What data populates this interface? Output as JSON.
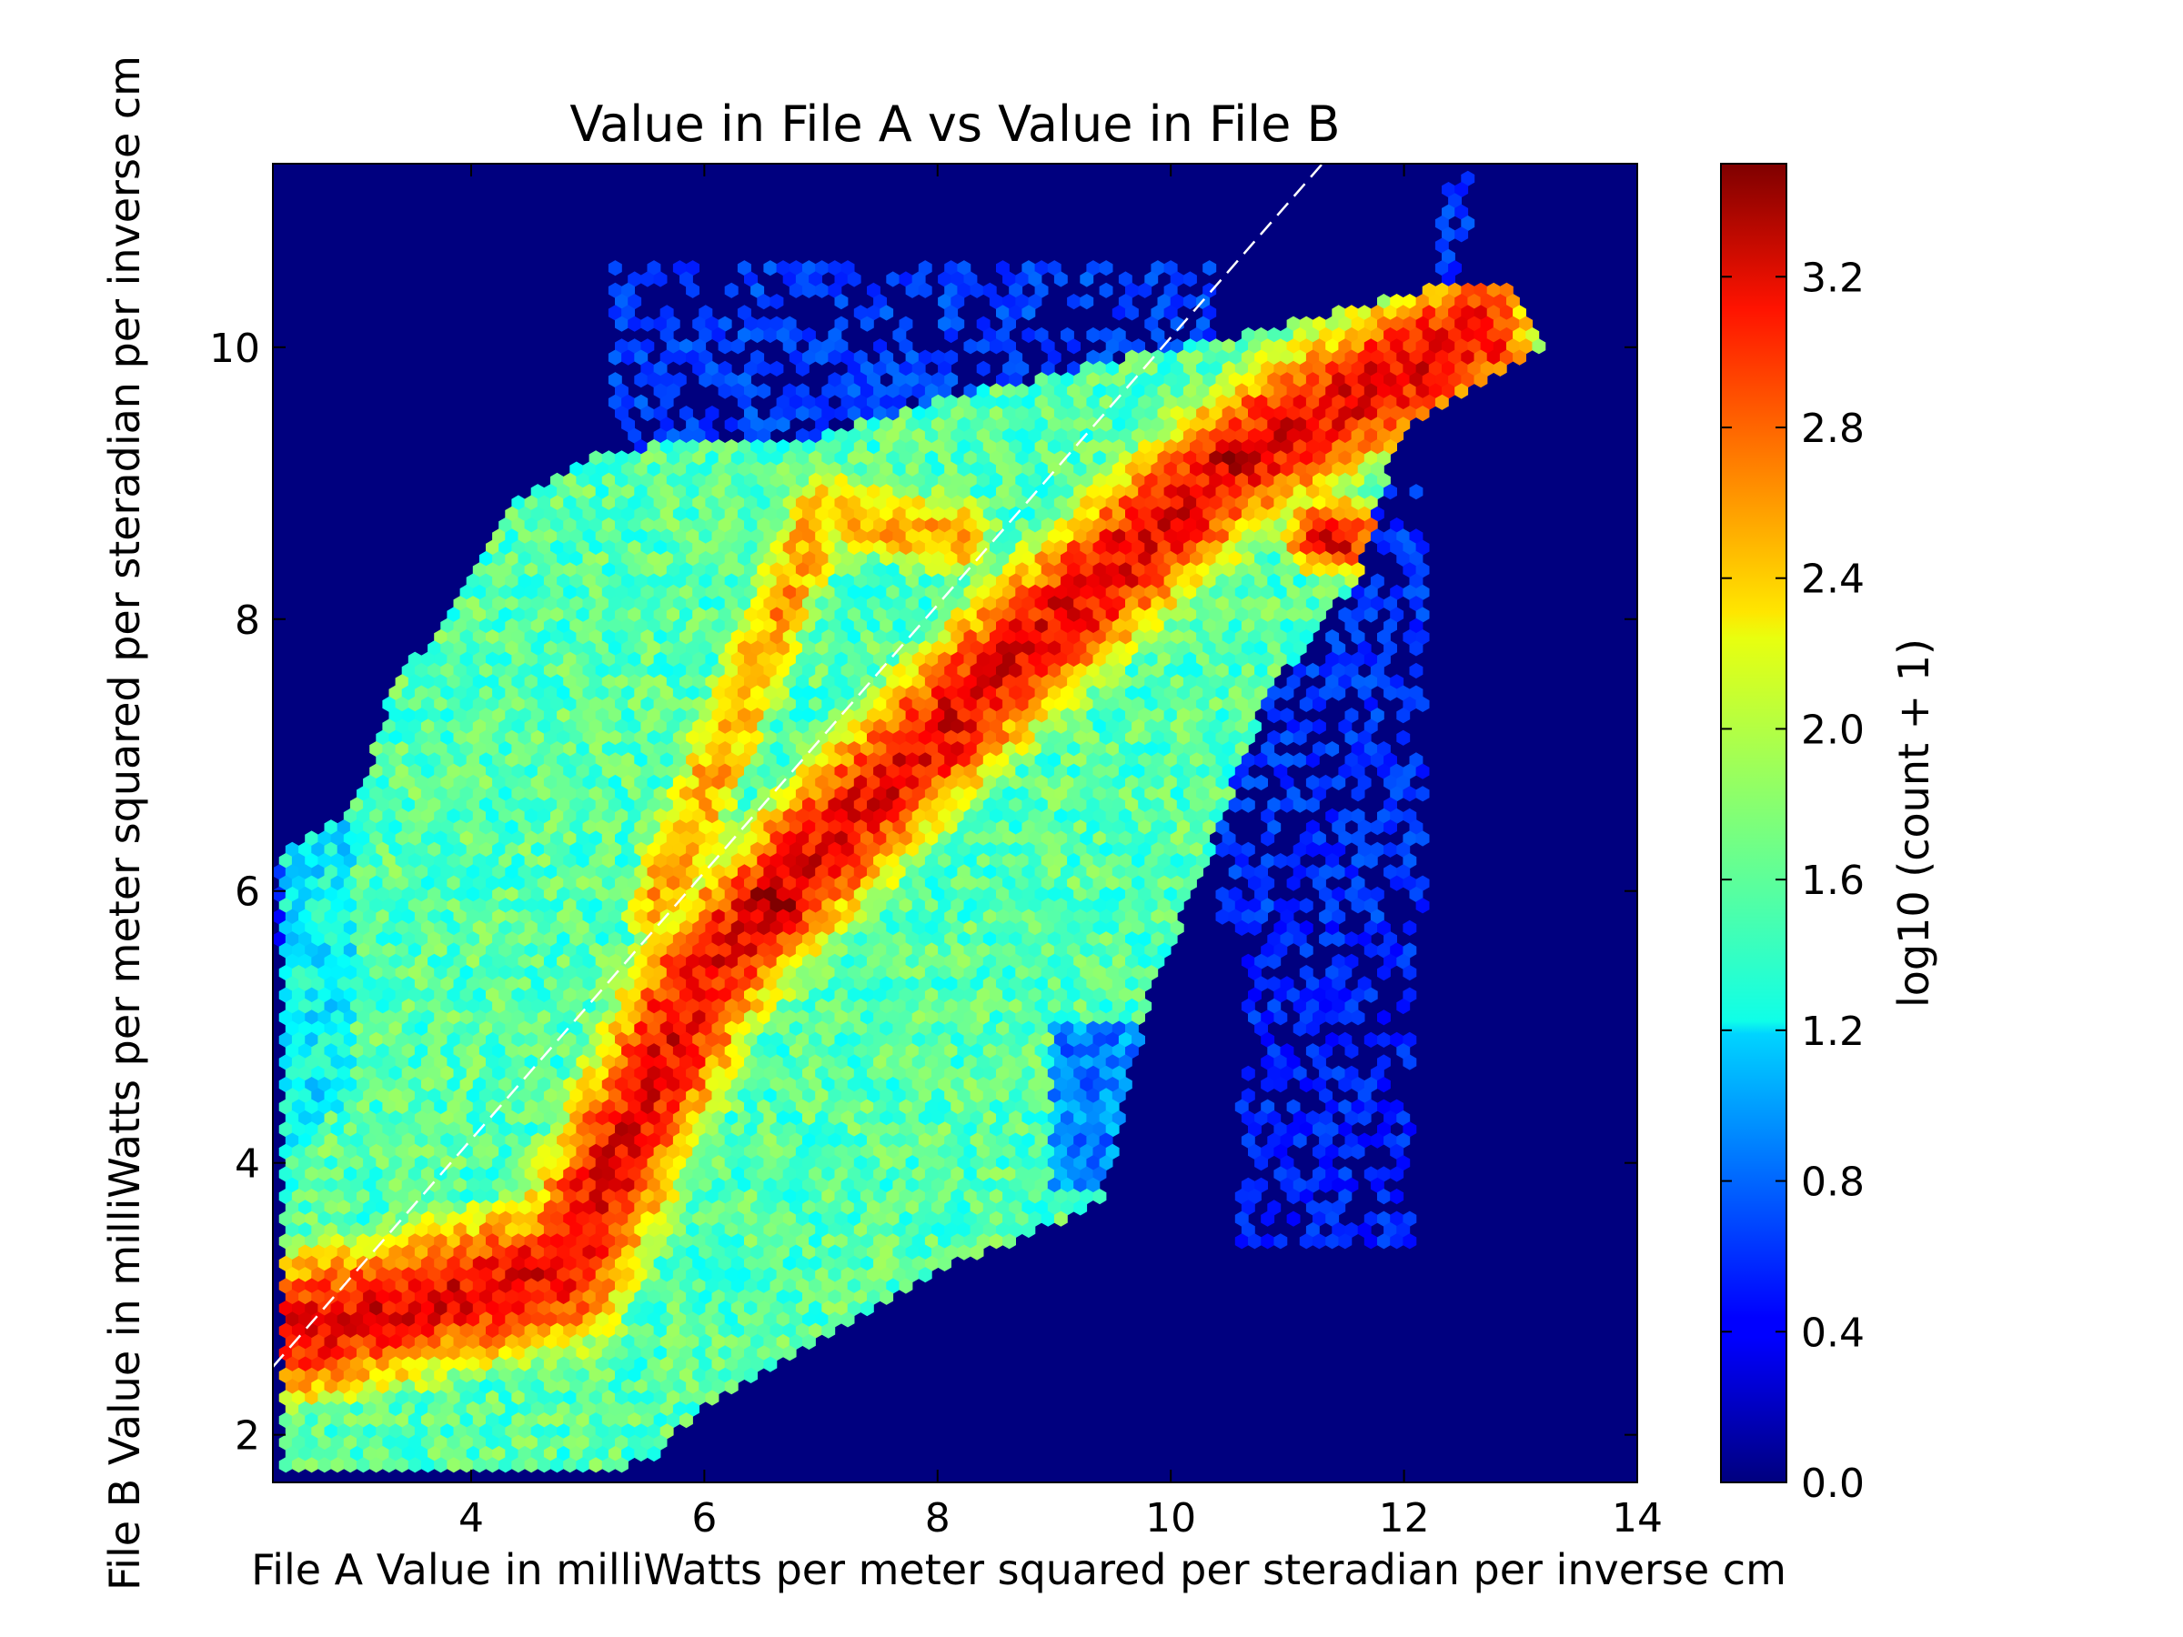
{
  "chart_data": {
    "type": "heatmap",
    "subtype": "hexbin",
    "title": "Value in File A vs Value in File B",
    "xlabel": "File A Value in milliWatts per meter squared per steradian per inverse cm",
    "ylabel": "File B Value in milliWatts per meter squared per steradian per inverse cm",
    "xlim": [
      2.3,
      14.0
    ],
    "ylim": [
      1.65,
      11.35
    ],
    "x_ticks": [
      4,
      6,
      8,
      10,
      12,
      14
    ],
    "y_ticks": [
      2,
      4,
      6,
      8,
      10
    ],
    "colorbar": {
      "label": "log10 (count + 1)",
      "range": [
        0.0,
        3.5
      ],
      "ticks": [
        "0.0",
        "0.4",
        "0.8",
        "1.2",
        "1.6",
        "2.0",
        "2.4",
        "2.8",
        "3.2"
      ],
      "colormap": "jet"
    },
    "background_color": "#00007f",
    "reference_line": {
      "style": "dashed",
      "color": "#ffffff",
      "from": [
        2.3,
        2.5
      ],
      "to": [
        11.3,
        11.35
      ]
    },
    "density_features": [
      {
        "name": "peak",
        "x": 6.6,
        "y": 5.9,
        "log_count": 3.45
      },
      {
        "name": "peak",
        "x": 10.6,
        "y": 9.2,
        "log_count": 3.45
      },
      {
        "name": "high",
        "x": 11.4,
        "y": 8.6,
        "log_count": 3.2
      },
      {
        "name": "high",
        "x": 4.9,
        "y": 3.3,
        "log_count": 2.8
      },
      {
        "name": "high",
        "x": 8.2,
        "y": 7.4,
        "log_count": 3.0
      }
    ]
  }
}
